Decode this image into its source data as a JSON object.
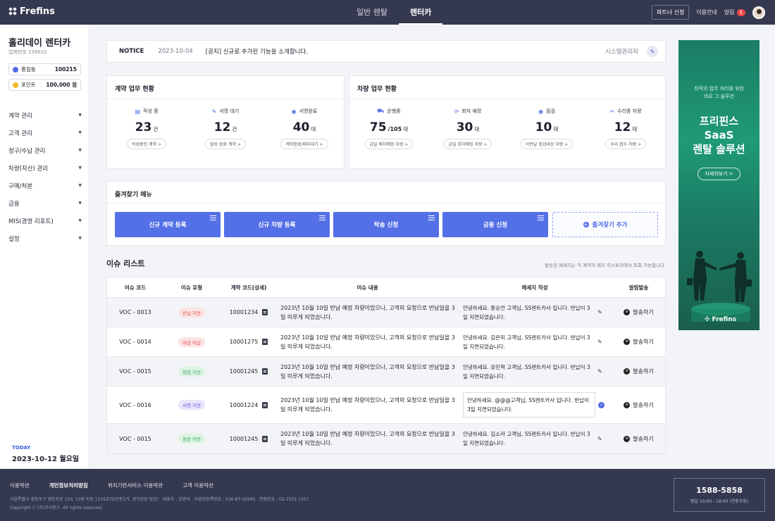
{
  "app": {
    "logo_text": "Frefins"
  },
  "topnav": {
    "tabs": [
      "일반 렌탈",
      "렌터카"
    ],
    "active": "렌터카"
  },
  "topright": {
    "partner": "파트너 신청",
    "guide": "이용안내",
    "alarm": "알림",
    "alarm_count": "5"
  },
  "sidebar": {
    "company": "홀리데이 렌터카",
    "company_no": "업체번호 156632",
    "user_name": "홍길동",
    "user_value": "100215",
    "point_label": "포인트",
    "point_value": "100,000 점",
    "items": [
      "계약 관리",
      "고객 관리",
      "청구/수납 관리",
      "차량(자산) 관리",
      "구매/처분",
      "금융",
      "MIS(경영 리포트)",
      "설정"
    ],
    "today_label": "TODAY",
    "today_date": "2023-10-12 월요일"
  },
  "notice": {
    "label": "NOTICE",
    "date": "2023-10-04",
    "message": "[공지] 신규로 추가된 기능을 소개합니다.",
    "author": "시스템관리자"
  },
  "contract_status": {
    "title": "계약 업무 현황",
    "stats": [
      {
        "label": "작성 중",
        "value": "23",
        "unit": "건",
        "sub": "",
        "button": "작성중인 계약 >"
      },
      {
        "label": "서명 대기",
        "value": "12",
        "unit": "건",
        "sub": "",
        "button": "발송 완료 계약 >"
      },
      {
        "label": "서명완료",
        "value": "40",
        "unit": "대",
        "sub": "",
        "button": "계약완료/배차대기 >"
      }
    ]
  },
  "vehicle_status": {
    "title": "차량 업무 현황",
    "stats": [
      {
        "label": "운행중",
        "value": "75",
        "unit": "대",
        "sub": "/105",
        "button": "금일 배차예정 차량 >"
      },
      {
        "label": "회차 예정",
        "value": "30",
        "unit": "대",
        "sub": "",
        "button": "금일 회차예정 차량 >"
      },
      {
        "label": "점검",
        "value": "10",
        "unit": "대",
        "sub": "",
        "button": "이번달 점검대상 차량 >"
      },
      {
        "label": "수리중 차량",
        "value": "12",
        "unit": "대",
        "sub": "",
        "button": "수리 접수 차량 >"
      }
    ]
  },
  "favorites": {
    "title": "즐겨찾기 메뉴",
    "buttons": [
      "신규 계약 등록",
      "신규 차량 등록",
      "탁송 신청",
      "금융 신청"
    ],
    "add": "즐겨찾기 추가"
  },
  "issues": {
    "title": "이슈 리스트",
    "note": "발송된 메세지는 각 계약의 메모 히스토리에서 조회 가능합니다.",
    "columns": [
      "이슈 코드",
      "이슈 유형",
      "계약 코드(상세)",
      "이슈 내용",
      "메세지 작성",
      "알림발송"
    ],
    "rows": [
      {
        "code": "VOC - 0013",
        "type": "반납 지연",
        "contract": "10001234",
        "content": "2023년 10월 10일 반납 예정 차량이었으나, 고객의 요청으로 반납일을 3일 미루게 되었습니다.",
        "message": "안녕하세요. 홍승언 고객님, SS렌트카사 입니다. 반납이 3일 지연되었습니다.",
        "send": "발송하기"
      },
      {
        "code": "VOC - 0014",
        "type": "대금 미납",
        "contract": "10001275",
        "content": "2023년 10월 10일 반납 예정 차량이었으나, 고객의 요청으로 반납일을 3일 미루게 되었습니다.",
        "message": "안녕하세요. 김은미 고객님, SS렌트카사 입니다. 반납이 3일 지연되었습니다.",
        "send": "발송하기"
      },
      {
        "code": "VOC - 0015",
        "type": "점검 지연",
        "contract": "10001245",
        "content": "2023년 10월 10일 반납 예정 차량이었으나, 고객의 요청으로 반납일을 3일 미루게 되었습니다.",
        "message": "안녕하세요. 유민혁 고객님, SS렌트카사 입니다. 반납이 3일 지연되었습니다.",
        "send": "발송하기"
      },
      {
        "code": "VOC - 0016",
        "type": "서명 지연",
        "contract": "10001224",
        "content": "2023년 10월 10일 반납 예정 차량이었으나, 고객의 요청으로 반납일을 3일 미루게 되었습니다.",
        "message": "안녕하세요. @@@고객님, SS렌트카사 입니다. 반납이 3일 지연되었습니다.",
        "send": "발송하기"
      },
      {
        "code": "VOC - 0015",
        "type": "점검 지연",
        "contract": "10001245",
        "content": "2023년 10월 10일 반납 예정 차량이었으나, 고객의 요청으로 반납일을 3일 미루게 되었습니다.",
        "message": "안녕하세요. 김소라 고객님, SS렌트카사 입니다. 반납이 3일 지연되었습니다.",
        "send": "발송하기"
      }
    ]
  },
  "ad": {
    "line1": "최적의 업무 처리를 위한",
    "line2": "바로 그 솔루션",
    "h1": "프리핀스",
    "h2": "SaaS",
    "h3": "렌탈 솔루션",
    "button": "자세히보기 >",
    "logo": "Frefins"
  },
  "footer": {
    "links": [
      "이용약관",
      "개인정보처리방침",
      "위치기반서비스 이용약관",
      "고객 이용약관"
    ],
    "address": "서울특별시 영등포구 영등포로 150, 13층 비동 1316호(당산동1가, 생각공장 당산)",
    "ceo": "대표자 : 김병석",
    "bizno": "사업자등록번호 : 536-87-02565",
    "tel": "전화번호 : 02-1551-1357",
    "copyright": "Copyright ⓒ (주)프리핀스. All rights reserved.",
    "phone": "1588-5858",
    "hours": "평일 10:00 - 18:00 (연중무휴)"
  },
  "colors": {
    "accent": "#5470e6",
    "topbar": "#353950",
    "ad": "#1f9a76"
  }
}
